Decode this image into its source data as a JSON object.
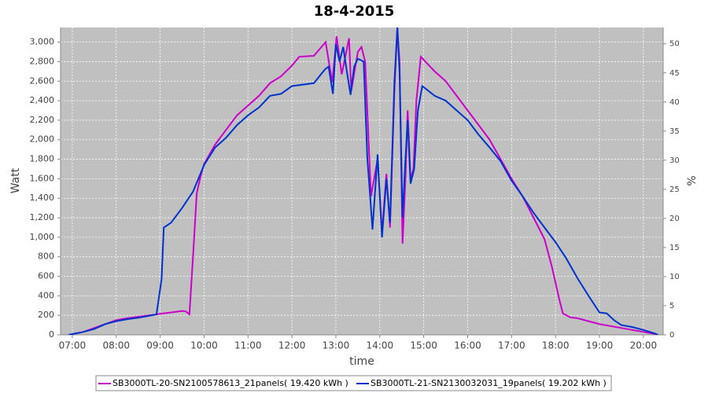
{
  "chart_data": {
    "type": "line",
    "title": "18-4-2015",
    "xlabel": "time",
    "ylabel": "Watt",
    "y2label": "%",
    "xlim": [
      "06:44",
      "20:27"
    ],
    "xticks": [
      "07:00",
      "08:00",
      "09:00",
      "10:00",
      "11:00",
      "12:00",
      "13:00",
      "14:00",
      "15:00",
      "16:00",
      "17:00",
      "18:00",
      "19:00",
      "20:00"
    ],
    "ylim": [
      0,
      3150
    ],
    "yticks": [
      0,
      200,
      400,
      600,
      800,
      {
        "value": 1000,
        "label": "1,000"
      },
      {
        "value": 1200,
        "label": "1,200"
      },
      {
        "value": 1400,
        "label": "1,400"
      },
      {
        "value": 1600,
        "label": "1,600"
      },
      {
        "value": 1800,
        "label": "1,800"
      },
      {
        "value": 2000,
        "label": "2,000"
      },
      {
        "value": 2200,
        "label": "2,200"
      },
      {
        "value": 2400,
        "label": "2,400"
      },
      {
        "value": 2600,
        "label": "2,600"
      },
      {
        "value": 2800,
        "label": "2,800"
      },
      {
        "value": 3000,
        "label": "3,000"
      }
    ],
    "y2lim": [
      0,
      52.8
    ],
    "y2ticks": [
      0,
      5,
      10,
      15,
      20,
      25,
      30,
      35,
      40,
      45,
      50
    ],
    "grid": true,
    "legend": "bottom",
    "series": [
      {
        "name": "SB3000TL-20-SN2100578613_21panels( 19.420 kWh )",
        "color": "#cc00cc",
        "x": [
          "06:55",
          "07:15",
          "07:30",
          "07:45",
          "08:00",
          "08:15",
          "08:30",
          "08:45",
          "09:00",
          "09:15",
          "09:30",
          "09:35",
          "09:40",
          "09:45",
          "09:50",
          "09:55",
          "10:00",
          "10:15",
          "10:30",
          "10:45",
          "11:00",
          "11:15",
          "11:30",
          "11:45",
          "12:00",
          "12:10",
          "12:30",
          "12:46",
          "12:55",
          "13:01",
          "13:08",
          "13:18",
          "13:21",
          "13:30",
          "13:35",
          "13:40",
          "13:48",
          "13:57",
          "14:03",
          "14:09",
          "14:14",
          "14:20",
          "14:24",
          "14:27",
          "14:31",
          "14:35",
          "14:38",
          "14:42",
          "14:46",
          "14:50",
          "14:56",
          "15:15",
          "15:30",
          "15:45",
          "16:00",
          "16:15",
          "16:30",
          "16:45",
          "17:00",
          "17:15",
          "17:30",
          "17:45",
          "17:55",
          "18:05",
          "18:10",
          "18:20",
          "18:30",
          "18:45",
          "19:00",
          "19:15",
          "19:30",
          "19:45",
          "20:00",
          "20:15",
          "20:20"
        ],
        "values": [
          0,
          30,
          70,
          110,
          150,
          170,
          185,
          200,
          215,
          230,
          245,
          240,
          210,
          820,
          1450,
          1620,
          1750,
          1950,
          2100,
          2250,
          2350,
          2450,
          2580,
          2650,
          2760,
          2850,
          2860,
          3000,
          2590,
          3060,
          2670,
          3040,
          2500,
          2900,
          2950,
          2800,
          1420,
          1800,
          1050,
          1650,
          1100,
          2500,
          3150,
          2800,
          935,
          1600,
          2300,
          1600,
          1700,
          2400,
          2850,
          2700,
          2600,
          2450,
          2300,
          2150,
          2000,
          1800,
          1600,
          1420,
          1200,
          980,
          700,
          370,
          220,
          180,
          170,
          140,
          110,
          90,
          70,
          50,
          30,
          10,
          0
        ]
      },
      {
        "name": "SB3000TL-21-SN2130032031_19panels( 19.202 kWh )",
        "color": "#0033cc",
        "x": [
          "06:55",
          "07:15",
          "07:30",
          "07:45",
          "08:00",
          "08:15",
          "08:30",
          "08:45",
          "08:55",
          "09:02",
          "09:05",
          "09:15",
          "09:30",
          "09:45",
          "10:00",
          "10:15",
          "10:30",
          "10:45",
          "11:00",
          "11:15",
          "11:30",
          "11:45",
          "12:00",
          "12:30",
          "12:45",
          "12:50",
          "12:56",
          "13:00",
          "13:05",
          "13:10",
          "13:15",
          "13:20",
          "13:25",
          "13:30",
          "13:38",
          "13:43",
          "13:47",
          "13:50",
          "13:57",
          "14:03",
          "14:09",
          "14:14",
          "14:20",
          "14:24",
          "14:27",
          "14:31",
          "14:35",
          "14:38",
          "14:42",
          "14:47",
          "14:52",
          "14:58",
          "15:15",
          "15:30",
          "15:45",
          "16:00",
          "16:15",
          "16:30",
          "16:45",
          "17:00",
          "17:15",
          "17:30",
          "17:45",
          "18:00",
          "18:15",
          "18:30",
          "18:45",
          "19:00",
          "19:10",
          "19:20",
          "19:30",
          "19:45",
          "20:00",
          "20:15",
          "20:20"
        ],
        "values": [
          0,
          30,
          60,
          110,
          140,
          160,
          175,
          195,
          210,
          570,
          1100,
          1150,
          1300,
          1470,
          1740,
          1920,
          2020,
          2150,
          2250,
          2330,
          2450,
          2470,
          2550,
          2580,
          2720,
          2750,
          2470,
          2980,
          2800,
          2950,
          2700,
          2460,
          2750,
          2830,
          2800,
          1800,
          1400,
          1080,
          1850,
          1000,
          1600,
          1150,
          2600,
          3150,
          2700,
          1200,
          1800,
          2200,
          1550,
          1700,
          2300,
          2550,
          2450,
          2400,
          2300,
          2200,
          2050,
          1920,
          1780,
          1580,
          1420,
          1250,
          1100,
          950,
          780,
          580,
          400,
          230,
          220,
          150,
          100,
          80,
          50,
          15,
          0
        ]
      }
    ]
  }
}
